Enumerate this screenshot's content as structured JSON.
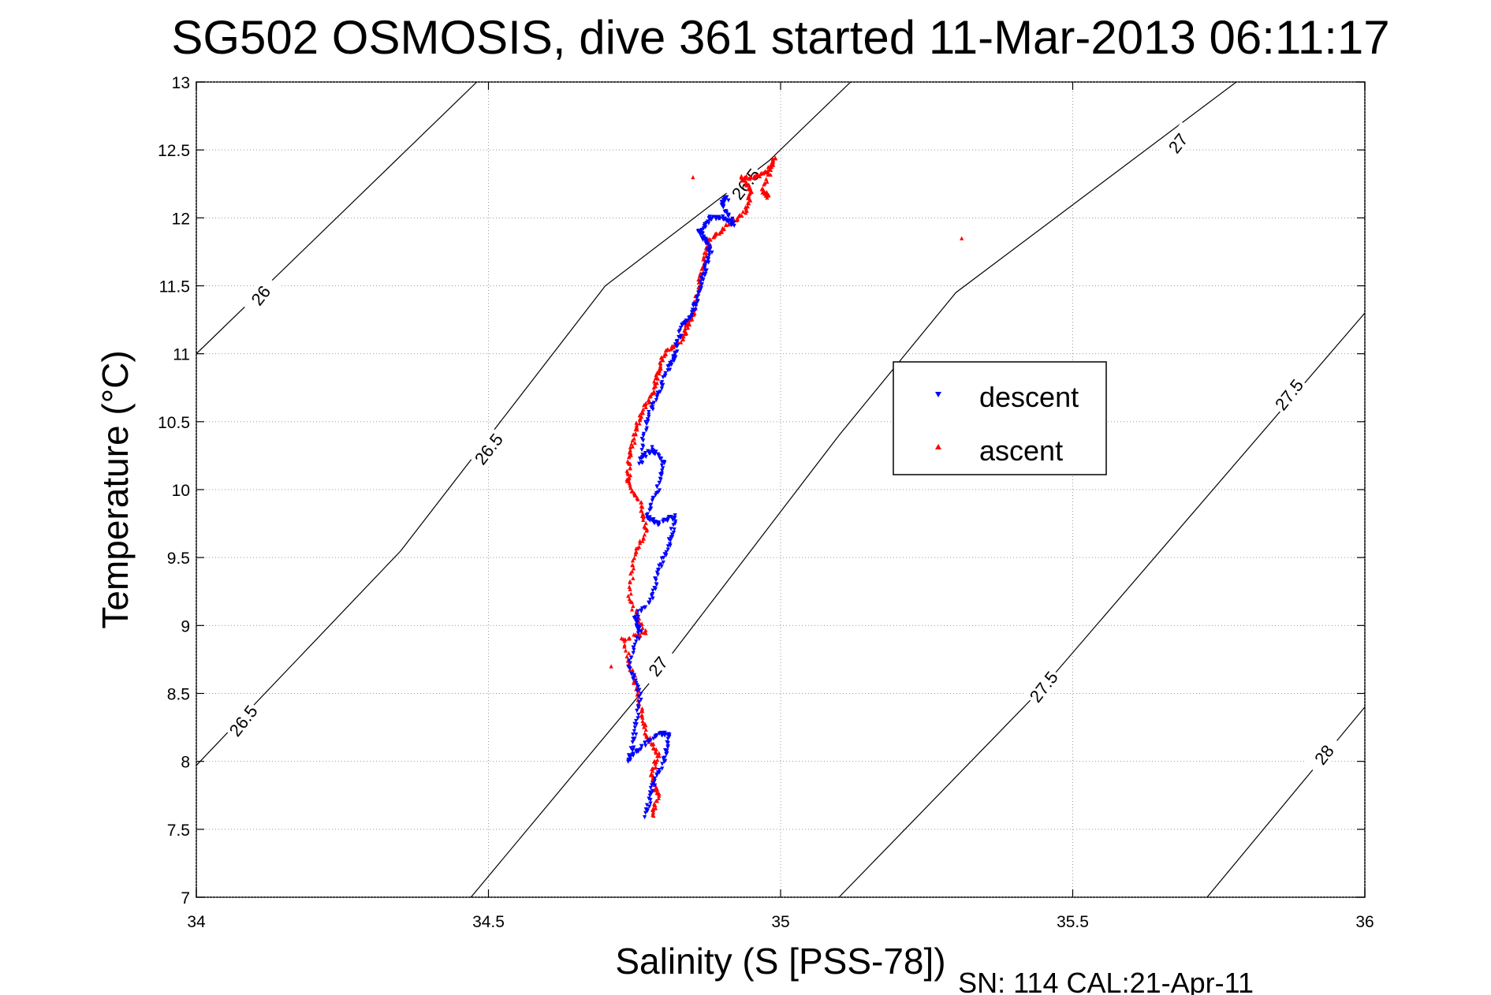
{
  "chart_data": {
    "type": "scatter",
    "title": "SG502 OSMOSIS, dive 361 started 11-Mar-2013 06:11:17",
    "xlabel": "Salinity (S [PSS-78])",
    "ylabel": "Temperature (°C)",
    "xlim": [
      34,
      36
    ],
    "ylim": [
      7,
      13
    ],
    "xticks": [
      "34",
      "34.5",
      "35",
      "35.5",
      "36"
    ],
    "yticks": [
      "7",
      "7.5",
      "8",
      "8.5",
      "9",
      "9.5",
      "10",
      "10.5",
      "11",
      "11.5",
      "12",
      "12.5",
      "13"
    ],
    "grid": true,
    "legend_position": "center-right",
    "footer": "SN: 114  CAL:21-Apr-11",
    "density_contours": [
      {
        "label": "26",
        "points": [
          [
            34.0,
            11.0
          ],
          [
            34.48,
            13.0
          ]
        ]
      },
      {
        "label": "26.5",
        "points": [
          [
            34.0,
            7.97
          ],
          [
            34.35,
            9.55
          ],
          [
            34.7,
            11.5
          ],
          [
            34.98,
            12.42
          ],
          [
            35.12,
            13.0
          ]
        ]
      },
      {
        "label": "27",
        "points": [
          [
            34.47,
            7.0
          ],
          [
            34.78,
            8.6
          ],
          [
            35.1,
            10.4
          ],
          [
            35.3,
            11.45
          ],
          [
            35.78,
            13.0
          ]
        ]
      },
      {
        "label": "27.5",
        "points": [
          [
            35.1,
            7.0
          ],
          [
            35.45,
            8.55
          ],
          [
            36.0,
            11.3
          ]
        ]
      },
      {
        "label": "28",
        "points": [
          [
            35.73,
            7.0
          ],
          [
            36.0,
            8.4
          ]
        ]
      }
    ],
    "contour_labels": [
      {
        "text": "26",
        "s": 34.11,
        "t": 11.43
      },
      {
        "text": "26.5",
        "s": 34.08,
        "t": 8.3
      },
      {
        "text": "26.5",
        "s": 34.5,
        "t": 10.3
      },
      {
        "text": "26.5",
        "s": 34.94,
        "t": 12.25
      },
      {
        "text": "27",
        "s": 34.79,
        "t": 8.7
      },
      {
        "text": "27",
        "s": 35.68,
        "t": 12.55
      },
      {
        "text": "27.5",
        "s": 35.45,
        "t": 8.55
      },
      {
        "text": "27.5",
        "s": 35.87,
        "t": 10.7
      },
      {
        "text": "28",
        "s": 35.93,
        "t": 8.05
      }
    ],
    "series": [
      {
        "name": "descent",
        "color": "#0000ff",
        "marker": "triangle-down",
        "path": [
          [
            34.77,
            7.6
          ],
          [
            34.78,
            7.8
          ],
          [
            34.8,
            8.0
          ],
          [
            34.81,
            8.2
          ],
          [
            34.79,
            8.2
          ],
          [
            34.76,
            8.1
          ],
          [
            34.74,
            8.0
          ],
          [
            34.75,
            8.2
          ],
          [
            34.76,
            8.5
          ],
          [
            34.74,
            8.7
          ],
          [
            34.76,
            8.95
          ],
          [
            34.75,
            9.05
          ],
          [
            34.78,
            9.2
          ],
          [
            34.79,
            9.4
          ],
          [
            34.81,
            9.6
          ],
          [
            34.82,
            9.8
          ],
          [
            34.79,
            9.75
          ],
          [
            34.77,
            9.8
          ],
          [
            34.79,
            10.0
          ],
          [
            34.8,
            10.2
          ],
          [
            34.78,
            10.3
          ],
          [
            34.76,
            10.2
          ],
          [
            34.77,
            10.5
          ],
          [
            34.79,
            10.7
          ],
          [
            34.81,
            10.9
          ],
          [
            34.82,
            11.0
          ],
          [
            34.83,
            11.2
          ],
          [
            34.85,
            11.3
          ],
          [
            34.86,
            11.45
          ],
          [
            34.87,
            11.6
          ],
          [
            34.88,
            11.75
          ],
          [
            34.87,
            11.85
          ],
          [
            34.86,
            11.9
          ],
          [
            34.88,
            12.0
          ],
          [
            34.9,
            12.0
          ],
          [
            34.92,
            11.95
          ],
          [
            34.9,
            12.1
          ],
          [
            34.91,
            12.15
          ]
        ]
      },
      {
        "name": "ascent",
        "color": "#ff0000",
        "marker": "triangle-up",
        "path": [
          [
            34.78,
            7.6
          ],
          [
            34.79,
            7.75
          ],
          [
            34.78,
            7.9
          ],
          [
            34.79,
            8.05
          ],
          [
            34.77,
            8.2
          ],
          [
            34.76,
            8.4
          ],
          [
            34.75,
            8.6
          ],
          [
            34.73,
            8.9
          ],
          [
            34.77,
            8.95
          ],
          [
            34.74,
            9.2
          ],
          [
            34.75,
            9.5
          ],
          [
            34.77,
            9.7
          ],
          [
            34.76,
            9.9
          ],
          [
            34.74,
            10.05
          ],
          [
            34.74,
            10.2
          ],
          [
            34.75,
            10.4
          ],
          [
            34.76,
            10.55
          ],
          [
            34.78,
            10.7
          ],
          [
            34.79,
            10.85
          ],
          [
            34.8,
            11.0
          ],
          [
            34.83,
            11.1
          ],
          [
            34.84,
            11.2
          ],
          [
            34.85,
            11.3
          ],
          [
            34.86,
            11.5
          ],
          [
            34.87,
            11.7
          ],
          [
            34.88,
            11.85
          ],
          [
            34.91,
            11.95
          ],
          [
            34.94,
            12.05
          ],
          [
            34.95,
            12.2
          ],
          [
            34.93,
            12.3
          ],
          [
            34.96,
            12.3
          ],
          [
            34.98,
            12.35
          ],
          [
            34.99,
            12.45
          ],
          [
            34.97,
            12.2
          ],
          [
            34.98,
            12.15
          ]
        ],
        "outliers": [
          [
            35.31,
            11.85
          ],
          [
            34.71,
            8.7
          ],
          [
            34.85,
            12.3
          ]
        ]
      }
    ]
  }
}
